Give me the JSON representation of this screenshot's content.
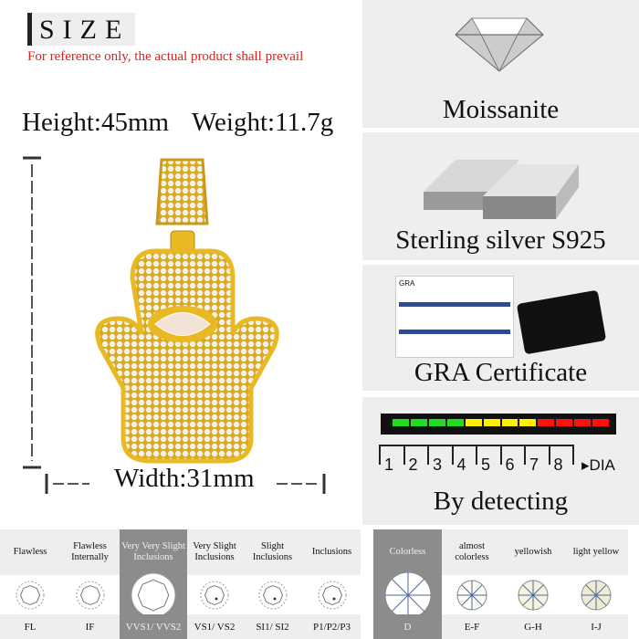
{
  "size_section": {
    "heading": "SIZE",
    "note": "For reference only, the actual product shall prevail",
    "height": "Height:45mm",
    "weight": "Weight:11.7g",
    "width": "Width:31mm"
  },
  "features": [
    {
      "label": "Moissanite",
      "icon": "diamond-icon"
    },
    {
      "label": "Sterling silver S925",
      "icon": "silver-bars-icon"
    },
    {
      "label": "GRA Certificate",
      "icon": "certificate-icon",
      "card_text": "GRA"
    },
    {
      "label": "By detecting",
      "icon": "diamond-tester-icon",
      "scale": [
        "1",
        "2",
        "3",
        "4",
        "5",
        "6",
        "7",
        "8"
      ],
      "scale_unit": "DIA",
      "meter_colors": [
        "#22dd22",
        "#22dd22",
        "#22dd22",
        "#22dd22",
        "#ffee00",
        "#ffee00",
        "#ffee00",
        "#ffee00",
        "#ff1111",
        "#ff1111",
        "#ff1111",
        "#ff1111"
      ]
    }
  ],
  "clarity": [
    {
      "name": "Flawless",
      "code": "FL",
      "selected": false
    },
    {
      "name": "Flawless Internally",
      "code": "IF",
      "selected": false
    },
    {
      "name": "Very Very Slight Inclusions",
      "code": "VVS1/ VVS2",
      "selected": true
    },
    {
      "name": "Very Slight Inclusions",
      "code": "VS1/ VS2",
      "selected": false
    },
    {
      "name": "Slight Inclusions",
      "code": "SI1/ SI2",
      "selected": false
    },
    {
      "name": "Inclusions",
      "code": "P1/P2/P3",
      "selected": false
    }
  ],
  "color_grades": [
    {
      "name": "Colorless",
      "code": "D",
      "selected": true
    },
    {
      "name": "almost colorless",
      "code": "E-F",
      "selected": false
    },
    {
      "name": "yellowish",
      "code": "G-H",
      "selected": false
    },
    {
      "name": "light yellow",
      "code": "I-J",
      "selected": false
    }
  ],
  "colors": {
    "accent_red": "#e0201c",
    "gold": "#e8b923",
    "selected_gray": "#8c8c8c"
  }
}
